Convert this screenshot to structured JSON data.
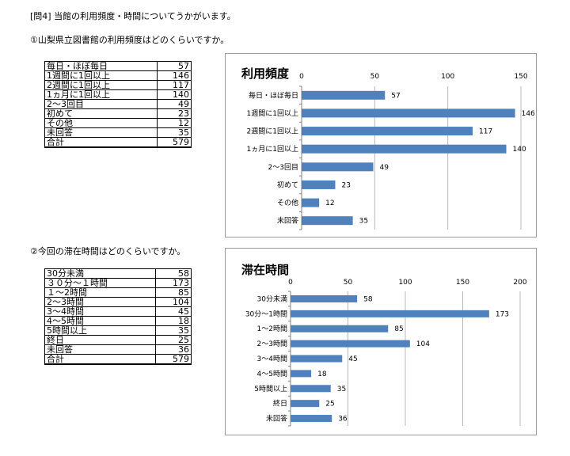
{
  "header": {
    "question": "[問4] 当館の利用頻度・時間についてうかがいます。",
    "q1": "①山梨県立図書館の利用頻度はどのくらいですか。",
    "q2": "②今回の滞在時間はどのくらいですか。"
  },
  "table1": [
    [
      "毎日・ほぼ毎日",
      "57"
    ],
    [
      "1週間に1回以上",
      "146"
    ],
    [
      "2週間に1回以上",
      "117"
    ],
    [
      "1ヵ月に1回以上",
      "140"
    ],
    [
      "2～3回目",
      "49"
    ],
    [
      "初めて",
      "23"
    ],
    [
      "その他",
      "12"
    ],
    [
      "未回答",
      "35"
    ],
    [
      "合計",
      "579"
    ]
  ],
  "table2": [
    [
      "30分未満",
      "58"
    ],
    [
      "３０分～１時間",
      "173"
    ],
    [
      "１～2時間",
      "85"
    ],
    [
      "2～3時間",
      "104"
    ],
    [
      "3～4時間",
      "45"
    ],
    [
      "4～5時間",
      "18"
    ],
    [
      "5時間以上",
      "35"
    ],
    [
      "終日",
      "25"
    ],
    [
      "未回答",
      "36"
    ],
    [
      "合計",
      "579"
    ]
  ],
  "chart_data": [
    {
      "type": "bar",
      "orientation": "horizontal",
      "title": "利用頻度",
      "categories": [
        "毎日・ほぼ毎日",
        "1週間に1回以上",
        "2週間に1回以上",
        "1ヵ月に1回以上",
        "2～3回目",
        "初めて",
        "その他",
        "未回答"
      ],
      "values": [
        57,
        146,
        117,
        140,
        49,
        23,
        12,
        35
      ],
      "xlim": [
        0,
        150
      ],
      "ticks": [
        0,
        50,
        100,
        150
      ],
      "color": "#4f81bd"
    },
    {
      "type": "bar",
      "orientation": "horizontal",
      "title": "滞在時間",
      "categories": [
        "30分未満",
        "30分～1時間",
        "1～2時間",
        "2～3時間",
        "3～4時間",
        "4～5時間",
        "5時間以上",
        "終日",
        "未回答"
      ],
      "values": [
        58,
        173,
        85,
        104,
        45,
        18,
        35,
        25,
        36
      ],
      "xlim": [
        0,
        200
      ],
      "ticks": [
        0,
        50,
        100,
        150,
        200
      ],
      "color": "#4f81bd"
    }
  ]
}
